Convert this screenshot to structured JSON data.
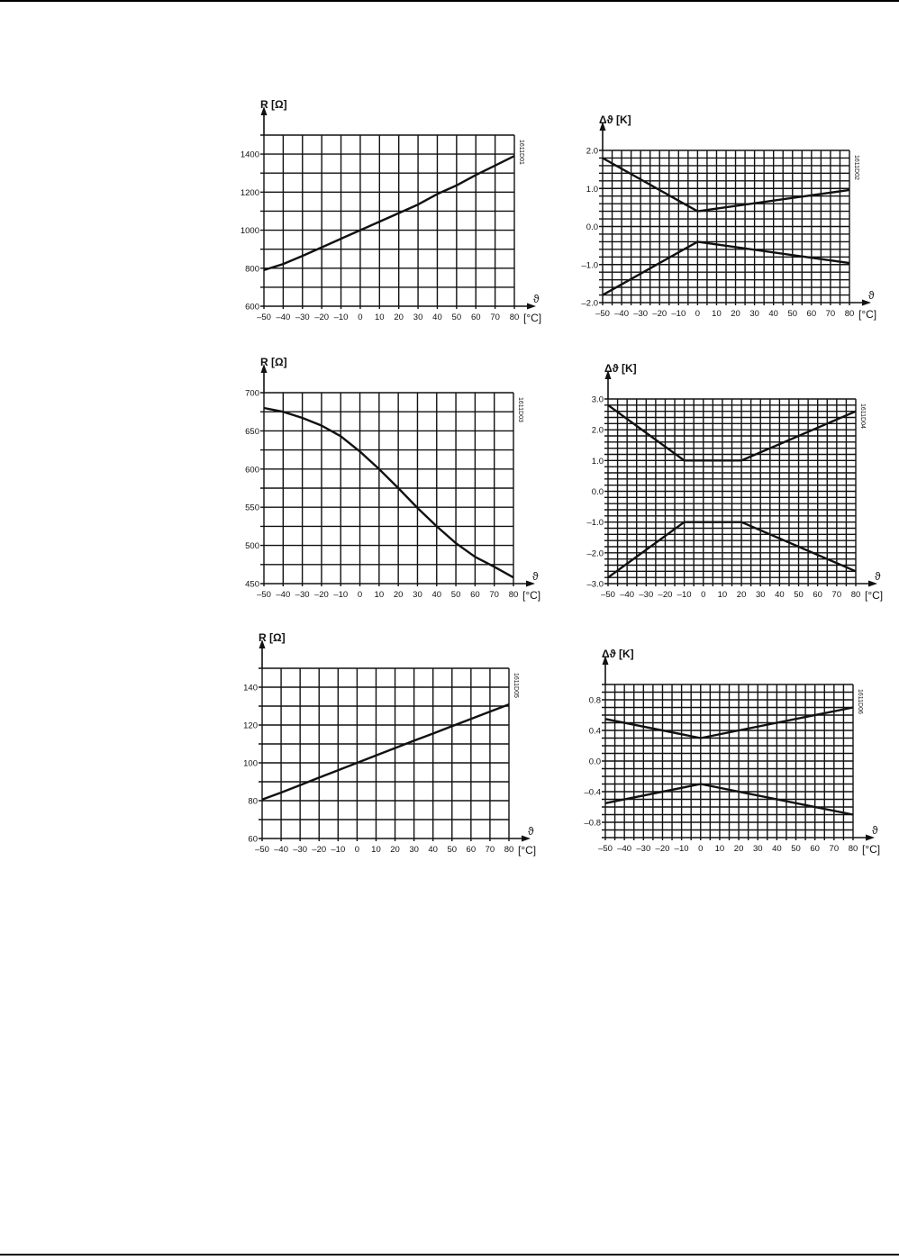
{
  "page": {
    "rule_color": "#000000"
  },
  "chart_data": [
    {
      "type": "line",
      "id": "1611D01",
      "ylabel": "R [Ω]",
      "xlabel": "ϑ",
      "xunit": "[°C]",
      "xlim": [
        -50,
        80
      ],
      "ylim": [
        600,
        1500
      ],
      "x_grid_step": 10,
      "y_grid_step": 100,
      "grid": true,
      "xticks": [
        -50,
        -40,
        -30,
        -20,
        -10,
        0,
        10,
        20,
        30,
        40,
        50,
        60,
        70,
        80
      ],
      "xtick_labels": [
        "–50",
        "–40",
        "–30",
        "–20",
        "–10",
        "0",
        "10",
        "20",
        "30",
        "40",
        "50",
        "60",
        "70",
        "80"
      ],
      "yticks": [
        600,
        800,
        1000,
        1200,
        1400
      ],
      "ytick_labels": [
        "600",
        "800",
        "1000",
        "1200",
        "1400"
      ],
      "series": [
        {
          "x": [
            -50,
            -40,
            -30,
            -20,
            -10,
            0,
            10,
            20,
            30,
            40,
            50,
            60,
            70,
            80
          ],
          "y": [
            790,
            822,
            865,
            910,
            955,
            1000,
            1045,
            1090,
            1135,
            1190,
            1235,
            1290,
            1340,
            1390
          ]
        }
      ]
    },
    {
      "type": "line",
      "id": "1611D02",
      "ylabel": "Δϑ [K]",
      "xlabel": "ϑ",
      "xunit": "[°C]",
      "xlim": [
        -50,
        80
      ],
      "ylim": [
        -2.0,
        2.0
      ],
      "x_grid_step": 5,
      "y_grid_step": 0.2,
      "grid": true,
      "xticks": [
        -50,
        -40,
        -30,
        -20,
        -10,
        0,
        10,
        20,
        30,
        40,
        50,
        60,
        70,
        80
      ],
      "xtick_labels": [
        "–50",
        "–40",
        "–30",
        "–20",
        "–10",
        "0",
        "10",
        "20",
        "30",
        "40",
        "50",
        "60",
        "70",
        "80"
      ],
      "yticks": [
        -2,
        -1,
        0,
        1,
        2
      ],
      "ytick_labels": [
        "–2.0",
        "–1.0",
        "0.0",
        "1.0",
        "2.0"
      ],
      "series": [
        {
          "x": [
            -50,
            0,
            80
          ],
          "y": [
            1.8,
            0.4,
            0.96
          ]
        },
        {
          "x": [
            -50,
            0,
            80
          ],
          "y": [
            -1.8,
            -0.4,
            -0.96
          ]
        }
      ]
    },
    {
      "type": "line",
      "id": "1611D03",
      "ylabel": "R [Ω]",
      "xlabel": "ϑ",
      "xunit": "[°C]",
      "xlim": [
        -50,
        80
      ],
      "ylim": [
        450,
        700
      ],
      "x_grid_step": 10,
      "y_grid_step": 25,
      "grid": true,
      "xticks": [
        -50,
        -40,
        -30,
        -20,
        -10,
        0,
        10,
        20,
        30,
        40,
        50,
        60,
        70,
        80
      ],
      "xtick_labels": [
        "–50",
        "–40",
        "–30",
        "–20",
        "–10",
        "0",
        "10",
        "20",
        "30",
        "40",
        "50",
        "60",
        "70",
        "80"
      ],
      "yticks": [
        450,
        500,
        550,
        600,
        650,
        700
      ],
      "ytick_labels": [
        "450",
        "500",
        "550",
        "600",
        "650",
        "700"
      ],
      "series": [
        {
          "x": [
            -50,
            -40,
            -30,
            -20,
            -10,
            0,
            10,
            20,
            30,
            40,
            50,
            60,
            70,
            80
          ],
          "y": [
            680,
            675,
            667,
            657,
            643,
            623,
            600,
            575,
            549,
            525,
            503,
            485,
            472,
            458
          ]
        }
      ]
    },
    {
      "type": "line",
      "id": "1611D04",
      "ylabel": "Δϑ [K]",
      "xlabel": "ϑ",
      "xunit": "[°C]",
      "xlim": [
        -50,
        80
      ],
      "ylim": [
        -3.0,
        3.0
      ],
      "x_grid_step": 5,
      "y_grid_step": 0.2,
      "grid": true,
      "xticks": [
        -50,
        -40,
        -30,
        -20,
        -10,
        0,
        10,
        20,
        30,
        40,
        50,
        60,
        70,
        80
      ],
      "xtick_labels": [
        "–50",
        "–40",
        "–30",
        "–20",
        "–10",
        "0",
        "10",
        "20",
        "30",
        "40",
        "50",
        "60",
        "70",
        "80"
      ],
      "yticks": [
        -3,
        -2,
        -1,
        0,
        1,
        2,
        3
      ],
      "ytick_labels": [
        "–3.0",
        "–2.0",
        "–1.0",
        "0.0",
        "1.0",
        "2.0",
        "3.0"
      ],
      "series": [
        {
          "x": [
            -50,
            -10,
            20,
            80
          ],
          "y": [
            2.8,
            1.0,
            1.0,
            2.6
          ]
        },
        {
          "x": [
            -50,
            -10,
            20,
            80
          ],
          "y": [
            -2.8,
            -1.0,
            -1.0,
            -2.6
          ]
        }
      ]
    },
    {
      "type": "line",
      "id": "1611D05",
      "ylabel": "R [Ω]",
      "xlabel": "ϑ",
      "xunit": "[°C]",
      "xlim": [
        -50,
        80
      ],
      "ylim": [
        60,
        150
      ],
      "x_grid_step": 10,
      "y_grid_step": 10,
      "grid": true,
      "xticks": [
        -50,
        -40,
        -30,
        -20,
        -10,
        0,
        10,
        20,
        30,
        40,
        50,
        60,
        70,
        80
      ],
      "xtick_labels": [
        "–50",
        "–40",
        "–30",
        "–20",
        "–10",
        "0",
        "10",
        "20",
        "30",
        "40",
        "50",
        "60",
        "70",
        "80"
      ],
      "yticks": [
        60,
        80,
        100,
        120,
        140
      ],
      "ytick_labels": [
        "60",
        "80",
        "100",
        "120",
        "140"
      ],
      "series": [
        {
          "x": [
            -50,
            -40,
            -30,
            -20,
            -10,
            0,
            10,
            20,
            30,
            40,
            50,
            60,
            70,
            80
          ],
          "y": [
            80.6,
            84.3,
            88.2,
            92.2,
            96.1,
            100,
            103.9,
            107.8,
            111.7,
            115.5,
            119.4,
            123.2,
            127.1,
            130.9
          ]
        }
      ]
    },
    {
      "type": "line",
      "id": "1611D06",
      "ylabel": "Δϑ [K]",
      "xlabel": "ϑ",
      "xunit": "[°C]",
      "xlim": [
        -50,
        80
      ],
      "ylim": [
        -1.0,
        1.0
      ],
      "x_grid_step": 5,
      "y_grid_step": 0.1,
      "grid": true,
      "xticks": [
        -50,
        -40,
        -30,
        -20,
        -10,
        0,
        10,
        20,
        30,
        40,
        50,
        60,
        70,
        80
      ],
      "xtick_labels": [
        "–50",
        "–40",
        "–30",
        "–20",
        "–10",
        "0",
        "10",
        "20",
        "30",
        "40",
        "50",
        "60",
        "70",
        "80"
      ],
      "yticks": [
        -0.8,
        -0.4,
        0,
        0.4,
        0.8
      ],
      "ytick_labels": [
        "–0.8",
        "–0.4",
        "0.0",
        "0.4",
        "0.8"
      ],
      "series": [
        {
          "x": [
            -50,
            0,
            80
          ],
          "y": [
            0.55,
            0.3,
            0.7
          ]
        },
        {
          "x": [
            -50,
            0,
            80
          ],
          "y": [
            -0.55,
            -0.3,
            -0.7
          ]
        }
      ]
    }
  ]
}
